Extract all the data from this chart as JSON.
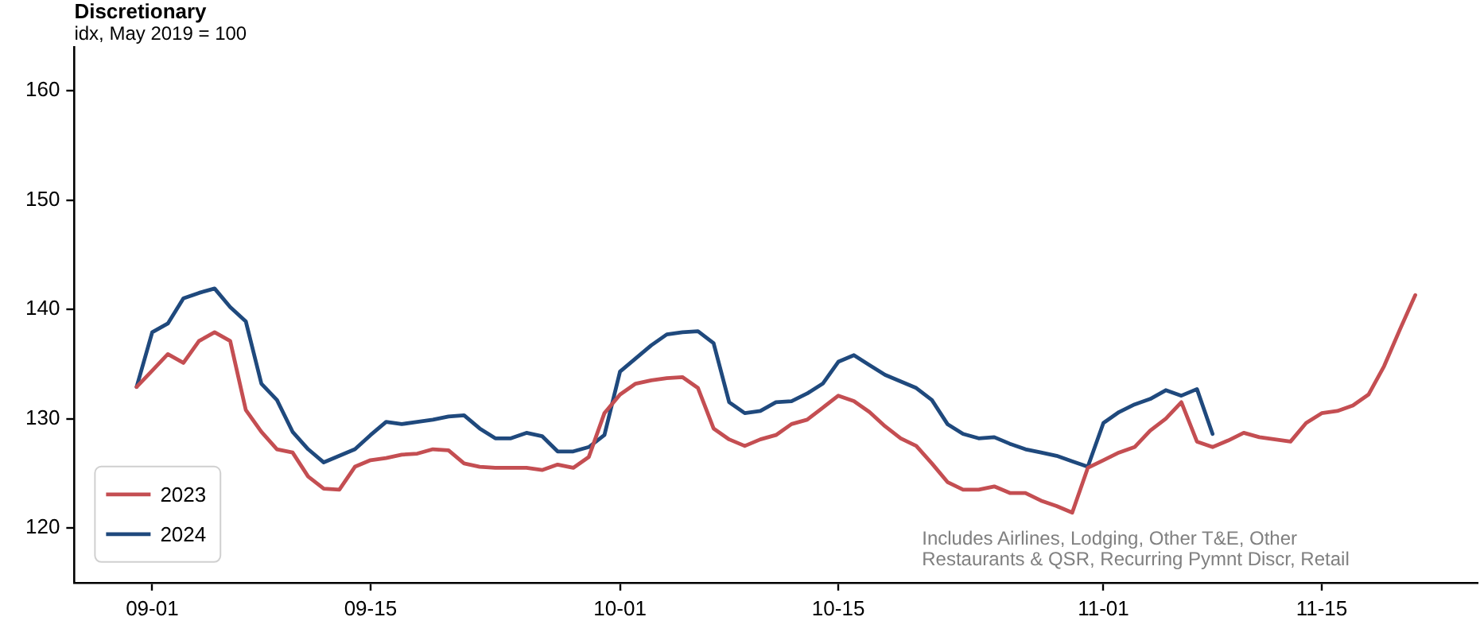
{
  "chart_data": {
    "type": "line",
    "title": "Discretionary",
    "subtitle": "idx, May 2019 = 100",
    "x": [
      "--08-31",
      "--09-01",
      "--09-02",
      "--09-03",
      "--09-04",
      "--09-05",
      "--09-06",
      "--09-07",
      "--09-08",
      "--09-09",
      "--09-10",
      "--09-11",
      "--09-12",
      "--09-13",
      "--09-14",
      "--09-15",
      "--09-16",
      "--09-17",
      "--09-18",
      "--09-19",
      "--09-20",
      "--09-21",
      "--09-22",
      "--09-23",
      "--09-24",
      "--09-25",
      "--09-26",
      "--09-27",
      "--09-28",
      "--09-29",
      "--09-30",
      "--10-01",
      "--10-02",
      "--10-03",
      "--10-04",
      "--10-05",
      "--10-06",
      "--10-07",
      "--10-08",
      "--10-09",
      "--10-10",
      "--10-11",
      "--10-12",
      "--10-13",
      "--10-14",
      "--10-15",
      "--10-16",
      "--10-17",
      "--10-18",
      "--10-19",
      "--10-20",
      "--10-21",
      "--10-22",
      "--10-23",
      "--10-24",
      "--10-25",
      "--10-26",
      "--10-27",
      "--10-28",
      "--10-29",
      "--10-30",
      "--10-31",
      "--11-01",
      "--11-02",
      "--11-03",
      "--11-04",
      "--11-05",
      "--11-06",
      "--11-07",
      "--11-08",
      "--11-09",
      "--11-10",
      "--11-11",
      "--11-12",
      "--11-13",
      "--11-14",
      "--11-15",
      "--11-16",
      "--11-17",
      "--11-18",
      "--11-19",
      "--11-20",
      "--11-21"
    ],
    "series": [
      {
        "name": "2023",
        "color": "#c44e52",
        "values": [
          132.9,
          134.4,
          135.9,
          135.1,
          137.1,
          137.9,
          137.1,
          130.8,
          128.8,
          127.2,
          126.9,
          124.7,
          123.6,
          123.5,
          125.6,
          126.2,
          126.4,
          126.7,
          126.8,
          127.2,
          127.1,
          125.9,
          125.6,
          125.5,
          125.5,
          125.5,
          125.3,
          125.8,
          125.5,
          126.5,
          130.5,
          132.2,
          133.2,
          133.5,
          133.7,
          133.8,
          132.8,
          129.1,
          128.1,
          127.5,
          128.1,
          128.5,
          129.5,
          129.9,
          131.0,
          132.1,
          131.6,
          130.6,
          129.3,
          128.2,
          127.5,
          125.9,
          124.2,
          123.5,
          123.5,
          123.8,
          123.2,
          123.2,
          122.5,
          122.0,
          121.4,
          125.5,
          126.2,
          126.9,
          127.4,
          128.9,
          130.0,
          131.5,
          127.9,
          127.4,
          128.0,
          128.7,
          128.3,
          128.1,
          127.9,
          129.6,
          130.5,
          130.7,
          131.2,
          132.2,
          134.8,
          138.1,
          141.3
        ]
      },
      {
        "name": "2024",
        "color": "#1f497d",
        "values": [
          132.9,
          137.9,
          138.7,
          141.0,
          141.5,
          141.9,
          140.2,
          138.9,
          133.2,
          131.7,
          128.8,
          127.2,
          126.0,
          126.6,
          127.2,
          128.5,
          129.7,
          129.5,
          129.7,
          129.9,
          130.2,
          130.3,
          129.1,
          128.2,
          128.2,
          128.7,
          128.4,
          127.0,
          127.0,
          127.4,
          128.5,
          134.3,
          135.5,
          136.7,
          137.7,
          137.9,
          138.0,
          136.9,
          131.5,
          130.5,
          130.7,
          131.5,
          131.6,
          132.3,
          133.2,
          135.2,
          135.8,
          134.9,
          134.0,
          133.4,
          132.8,
          131.7,
          129.5,
          128.6,
          128.2,
          128.3,
          127.7,
          127.2,
          126.9,
          126.6,
          126.1,
          125.6,
          129.6,
          130.6,
          131.3,
          131.8,
          132.6,
          132.1,
          132.7,
          128.6,
          null,
          null,
          null,
          null,
          null,
          null,
          null,
          null,
          null,
          null,
          null,
          null,
          null
        ]
      }
    ],
    "xlim": [
      "--08-27",
      "--11-25"
    ],
    "xticks": [
      {
        "value": "--09-01",
        "label": "09-01"
      },
      {
        "value": "--09-15",
        "label": "09-15"
      },
      {
        "value": "--10-01",
        "label": "10-01"
      },
      {
        "value": "--10-15",
        "label": "10-15"
      },
      {
        "value": "--11-01",
        "label": "11-01"
      },
      {
        "value": "--11-15",
        "label": "11-15"
      }
    ],
    "ylim": [
      115,
      164
    ],
    "yticks": [
      120,
      130,
      140,
      150,
      160
    ],
    "annotations": [
      "Includes Airlines, Lodging, Other T&E, Other Restaurants & QSR, Recurring Pymnt Discr, Retail"
    ],
    "legend": "bottom left",
    "grid": false,
    "marker": "none",
    "line_style": "solid"
  }
}
